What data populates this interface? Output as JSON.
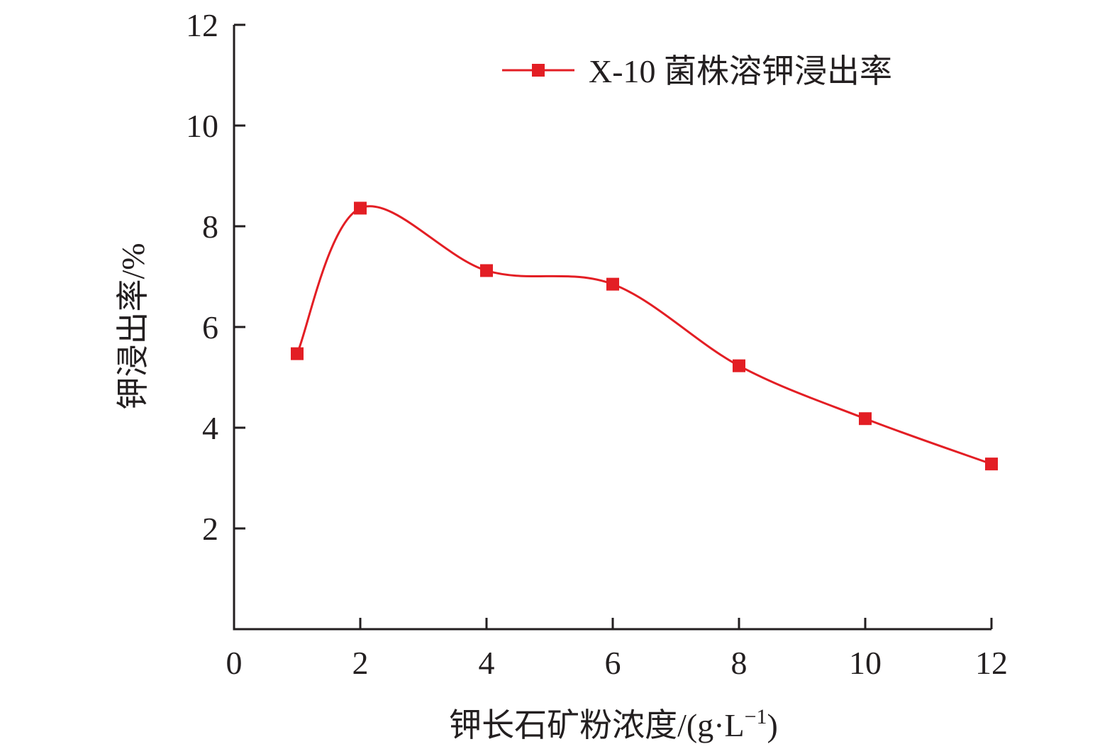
{
  "chart_data": {
    "type": "line",
    "x": [
      1,
      2,
      4,
      6,
      8,
      10,
      12
    ],
    "series": [
      {
        "name": "X-10 菌株溶钾浸出率",
        "values": [
          5.47,
          8.36,
          7.12,
          6.85,
          5.23,
          4.18,
          3.28
        ]
      }
    ],
    "xlabel": "钾长石矿粉浓度/(g·L",
    "xlabel_sup": "−1",
    "xlabel_end": ")",
    "ylabel": "钾浸出率/%",
    "xlim": [
      0,
      12
    ],
    "ylim": [
      0,
      12
    ],
    "xticks": [
      0,
      2,
      4,
      6,
      8,
      10,
      12
    ],
    "xtick_labels": [
      "0",
      "2",
      "4",
      "6",
      "8",
      "10",
      "12"
    ],
    "yticks": [
      2,
      4,
      6,
      8,
      10,
      12
    ],
    "ytick_labels": [
      "2",
      "4",
      "6",
      "8",
      "10",
      "12"
    ],
    "grid": false,
    "smooth": true,
    "marker": "square",
    "legend_position": "top-right",
    "colors": {
      "series": "#e31e24",
      "axis": "#231f20"
    }
  }
}
